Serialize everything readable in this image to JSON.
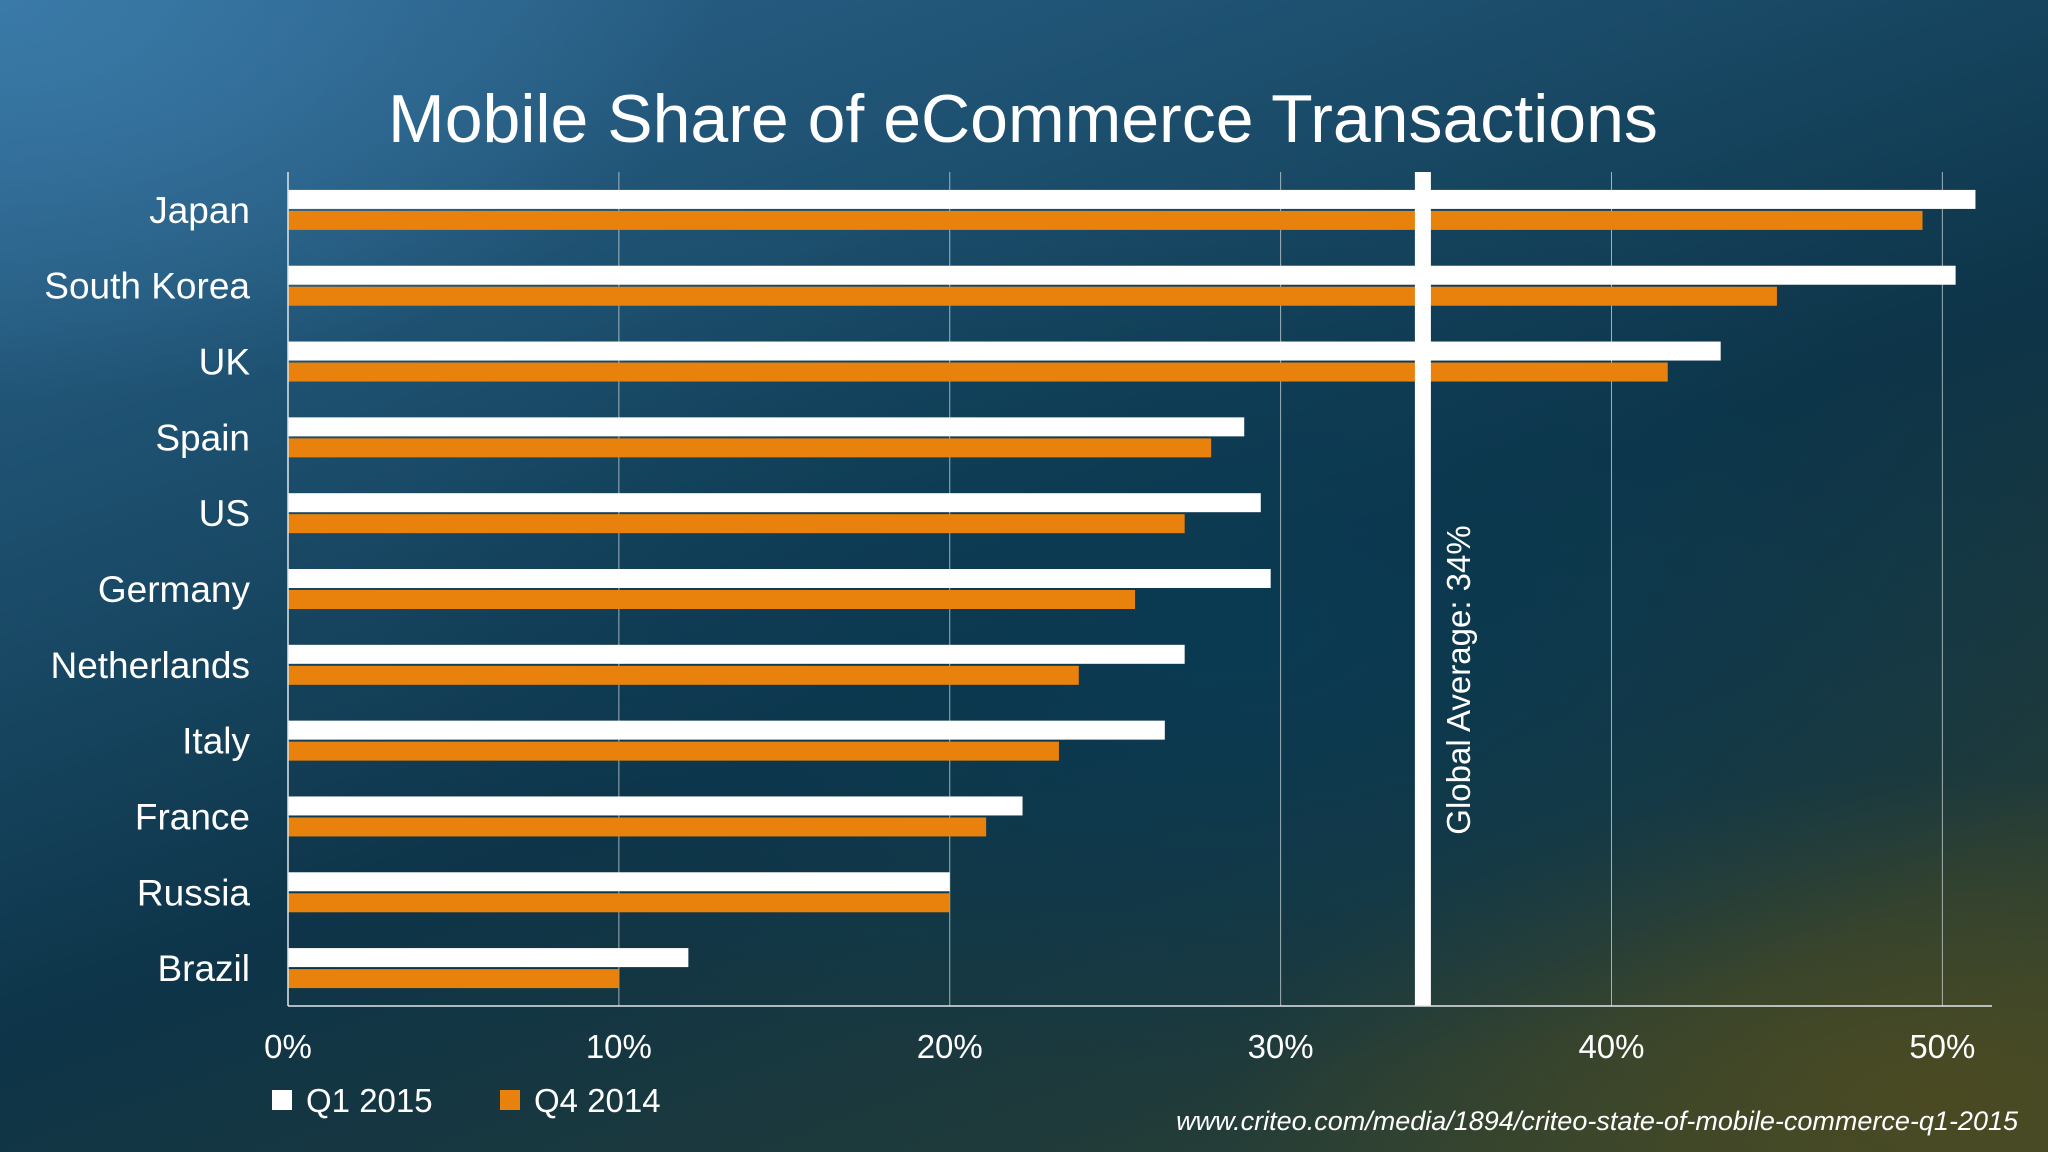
{
  "chart_data": {
    "type": "bar",
    "orientation": "horizontal",
    "title": "Mobile Share of eCommerce Transactions",
    "categories": [
      "Japan",
      "South Korea",
      "UK",
      "Spain",
      "US",
      "Germany",
      "Netherlands",
      "Italy",
      "France",
      "Russia",
      "Brazil"
    ],
    "series": [
      {
        "name": "Q1 2015",
        "color": "#ffffff",
        "values": [
          51,
          50.4,
          43.3,
          28.9,
          29.4,
          29.7,
          27.1,
          26.5,
          22.2,
          20,
          12.1
        ]
      },
      {
        "name": "Q4 2014",
        "color": "#e8820c",
        "values": [
          49.4,
          45,
          41.7,
          27.9,
          27.1,
          25.6,
          23.9,
          23.3,
          21.1,
          20,
          10
        ]
      }
    ],
    "xlim": [
      0,
      51.5
    ],
    "xticks": [
      0,
      10,
      20,
      30,
      40,
      50
    ],
    "xtick_labels": [
      "0%",
      "10%",
      "20%",
      "30%",
      "40%",
      "50%"
    ],
    "grid": "vertical",
    "legend_position": "bottom-left",
    "reference_line": {
      "value": 34.3,
      "label": "Global Average: 34%"
    }
  },
  "source": "www.criteo.com/media/1894/criteo-state-of-mobile-commerce-q1-2015"
}
